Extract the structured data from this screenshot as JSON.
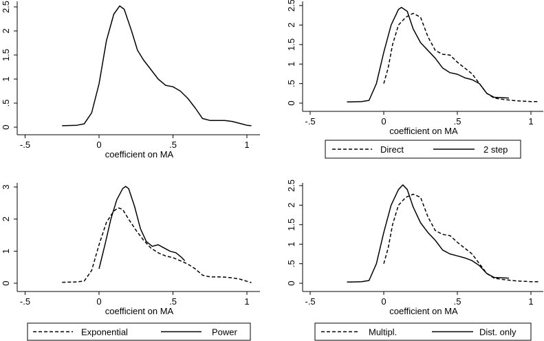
{
  "chart_data": [
    {
      "type": "line",
      "xlabel": "coefficient on MA",
      "xlim": [
        -0.5,
        1.0
      ],
      "ylim": [
        0,
        2.5
      ],
      "xticks": [
        {
          "v": -0.5,
          "label": "-.5"
        },
        {
          "v": 0,
          "label": "0"
        },
        {
          "v": 0.5,
          "label": ".5"
        },
        {
          "v": 1,
          "label": "1"
        }
      ],
      "yticks": [
        {
          "v": 0,
          "label": "0"
        },
        {
          "v": 0.5,
          "label": ".5"
        },
        {
          "v": 1,
          "label": "1"
        },
        {
          "v": 1.5,
          "label": "1.5"
        },
        {
          "v": 2,
          "label": "2"
        },
        {
          "v": 2.5,
          "label": "2.5"
        }
      ],
      "legend": [],
      "series": [
        {
          "style": "solid",
          "points": [
            [
              -0.25,
              0.03
            ],
            [
              -0.15,
              0.04
            ],
            [
              -0.1,
              0.07
            ],
            [
              -0.05,
              0.3
            ],
            [
              0.0,
              0.9
            ],
            [
              0.05,
              1.8
            ],
            [
              0.1,
              2.35
            ],
            [
              0.14,
              2.52
            ],
            [
              0.17,
              2.45
            ],
            [
              0.22,
              2.0
            ],
            [
              0.26,
              1.6
            ],
            [
              0.3,
              1.4
            ],
            [
              0.35,
              1.2
            ],
            [
              0.4,
              1.0
            ],
            [
              0.45,
              0.87
            ],
            [
              0.5,
              0.84
            ],
            [
              0.55,
              0.75
            ],
            [
              0.6,
              0.6
            ],
            [
              0.65,
              0.4
            ],
            [
              0.7,
              0.18
            ],
            [
              0.75,
              0.14
            ],
            [
              0.8,
              0.14
            ],
            [
              0.85,
              0.14
            ],
            [
              0.9,
              0.12
            ],
            [
              0.95,
              0.08
            ],
            [
              1.0,
              0.04
            ],
            [
              1.03,
              0.03
            ]
          ]
        }
      ]
    },
    {
      "type": "line",
      "xlabel": "coefficient on MA",
      "xlim": [
        -0.5,
        1.0
      ],
      "ylim": [
        0,
        2.5
      ],
      "xticks": [
        {
          "v": -0.5,
          "label": "-.5"
        },
        {
          "v": 0,
          "label": "0"
        },
        {
          "v": 0.5,
          "label": ".5"
        },
        {
          "v": 1,
          "label": "1"
        }
      ],
      "yticks": [
        {
          "v": 0,
          "label": "0"
        },
        {
          "v": 0.5,
          "label": ".5"
        },
        {
          "v": 1,
          "label": "1"
        },
        {
          "v": 1.5,
          "label": "1.5"
        },
        {
          "v": 2,
          "label": "2"
        },
        {
          "v": 2.5,
          "label": "2.5"
        }
      ],
      "legend": [
        "Direct",
        "2 step"
      ],
      "series": [
        {
          "name": "Direct",
          "style": "dashed",
          "points": [
            [
              0.0,
              0.5
            ],
            [
              0.03,
              0.9
            ],
            [
              0.06,
              1.5
            ],
            [
              0.1,
              2.0
            ],
            [
              0.15,
              2.2
            ],
            [
              0.2,
              2.3
            ],
            [
              0.25,
              2.2
            ],
            [
              0.3,
              1.7
            ],
            [
              0.35,
              1.35
            ],
            [
              0.4,
              1.25
            ],
            [
              0.45,
              1.23
            ],
            [
              0.5,
              1.05
            ],
            [
              0.55,
              0.9
            ],
            [
              0.6,
              0.75
            ],
            [
              0.65,
              0.5
            ],
            [
              0.7,
              0.25
            ],
            [
              0.75,
              0.13
            ],
            [
              0.8,
              0.1
            ],
            [
              0.9,
              0.06
            ],
            [
              1.0,
              0.04
            ],
            [
              1.05,
              0.04
            ]
          ]
        },
        {
          "name": "2 step",
          "style": "solid",
          "points": [
            [
              -0.25,
              0.03
            ],
            [
              -0.15,
              0.04
            ],
            [
              -0.1,
              0.07
            ],
            [
              -0.05,
              0.5
            ],
            [
              0.0,
              1.3
            ],
            [
              0.05,
              2.0
            ],
            [
              0.1,
              2.4
            ],
            [
              0.12,
              2.45
            ],
            [
              0.16,
              2.35
            ],
            [
              0.2,
              1.9
            ],
            [
              0.25,
              1.55
            ],
            [
              0.3,
              1.35
            ],
            [
              0.35,
              1.15
            ],
            [
              0.4,
              0.9
            ],
            [
              0.45,
              0.78
            ],
            [
              0.5,
              0.74
            ],
            [
              0.55,
              0.65
            ],
            [
              0.6,
              0.6
            ],
            [
              0.65,
              0.5
            ],
            [
              0.7,
              0.25
            ],
            [
              0.75,
              0.15
            ],
            [
              0.8,
              0.14
            ],
            [
              0.85,
              0.13
            ]
          ]
        }
      ]
    },
    {
      "type": "line",
      "xlabel": "coefficient on MA",
      "xlim": [
        -0.5,
        1.0
      ],
      "ylim": [
        0,
        3
      ],
      "xticks": [
        {
          "v": -0.5,
          "label": "-.5"
        },
        {
          "v": 0,
          "label": "0"
        },
        {
          "v": 0.5,
          "label": ".5"
        },
        {
          "v": 1,
          "label": "1"
        }
      ],
      "yticks": [
        {
          "v": 0,
          "label": "0"
        },
        {
          "v": 1,
          "label": "1"
        },
        {
          "v": 2,
          "label": "2"
        },
        {
          "v": 3,
          "label": "3"
        }
      ],
      "legend": [
        "Exponential",
        "Power"
      ],
      "series": [
        {
          "name": "Exponential",
          "style": "dashed",
          "points": [
            [
              -0.25,
              0.03
            ],
            [
              -0.15,
              0.04
            ],
            [
              -0.1,
              0.07
            ],
            [
              -0.05,
              0.4
            ],
            [
              0.0,
              1.2
            ],
            [
              0.05,
              1.9
            ],
            [
              0.1,
              2.25
            ],
            [
              0.13,
              2.35
            ],
            [
              0.16,
              2.3
            ],
            [
              0.2,
              2.0
            ],
            [
              0.25,
              1.65
            ],
            [
              0.3,
              1.35
            ],
            [
              0.35,
              1.1
            ],
            [
              0.4,
              0.95
            ],
            [
              0.45,
              0.85
            ],
            [
              0.5,
              0.8
            ],
            [
              0.55,
              0.7
            ],
            [
              0.6,
              0.6
            ],
            [
              0.65,
              0.45
            ],
            [
              0.7,
              0.25
            ],
            [
              0.75,
              0.2
            ],
            [
              0.8,
              0.2
            ],
            [
              0.85,
              0.19
            ],
            [
              0.9,
              0.17
            ],
            [
              0.95,
              0.13
            ],
            [
              1.0,
              0.06
            ],
            [
              1.03,
              0.02
            ]
          ]
        },
        {
          "name": "Power",
          "style": "solid",
          "points": [
            [
              0.0,
              0.45
            ],
            [
              0.04,
              1.2
            ],
            [
              0.08,
              2.0
            ],
            [
              0.12,
              2.6
            ],
            [
              0.16,
              2.95
            ],
            [
              0.18,
              3.02
            ],
            [
              0.2,
              2.95
            ],
            [
              0.24,
              2.4
            ],
            [
              0.28,
              1.7
            ],
            [
              0.32,
              1.3
            ],
            [
              0.36,
              1.15
            ],
            [
              0.4,
              1.2
            ],
            [
              0.44,
              1.1
            ],
            [
              0.48,
              1.0
            ],
            [
              0.52,
              0.95
            ],
            [
              0.56,
              0.8
            ],
            [
              0.58,
              0.7
            ]
          ]
        }
      ]
    },
    {
      "type": "line",
      "xlabel": "coefficient on MA",
      "xlim": [
        -0.5,
        1.0
      ],
      "ylim": [
        0,
        2.5
      ],
      "xticks": [
        {
          "v": -0.5,
          "label": "-.5"
        },
        {
          "v": 0,
          "label": "0"
        },
        {
          "v": 0.5,
          "label": ".5"
        },
        {
          "v": 1,
          "label": "1"
        }
      ],
      "yticks": [
        {
          "v": 0,
          "label": "0"
        },
        {
          "v": 0.5,
          "label": ".5"
        },
        {
          "v": 1,
          "label": "1"
        },
        {
          "v": 1.5,
          "label": "1.5"
        },
        {
          "v": 2,
          "label": "2"
        },
        {
          "v": 2.5,
          "label": "2.5"
        }
      ],
      "legend": [
        "Multipl.",
        "Dist. only"
      ],
      "series": [
        {
          "name": "Multipl.",
          "style": "dashed",
          "points": [
            [
              0.0,
              0.5
            ],
            [
              0.03,
              0.9
            ],
            [
              0.06,
              1.5
            ],
            [
              0.1,
              2.0
            ],
            [
              0.15,
              2.2
            ],
            [
              0.2,
              2.28
            ],
            [
              0.25,
              2.2
            ],
            [
              0.3,
              1.7
            ],
            [
              0.35,
              1.35
            ],
            [
              0.4,
              1.25
            ],
            [
              0.45,
              1.22
            ],
            [
              0.5,
              1.05
            ],
            [
              0.55,
              0.9
            ],
            [
              0.6,
              0.75
            ],
            [
              0.65,
              0.5
            ],
            [
              0.7,
              0.25
            ],
            [
              0.75,
              0.13
            ],
            [
              0.8,
              0.1
            ],
            [
              0.9,
              0.06
            ],
            [
              1.0,
              0.04
            ],
            [
              1.05,
              0.04
            ]
          ]
        },
        {
          "name": "Dist. only",
          "style": "solid",
          "points": [
            [
              -0.25,
              0.03
            ],
            [
              -0.15,
              0.04
            ],
            [
              -0.1,
              0.07
            ],
            [
              -0.05,
              0.5
            ],
            [
              0.0,
              1.3
            ],
            [
              0.05,
              2.0
            ],
            [
              0.1,
              2.4
            ],
            [
              0.13,
              2.52
            ],
            [
              0.16,
              2.4
            ],
            [
              0.2,
              1.95
            ],
            [
              0.25,
              1.55
            ],
            [
              0.3,
              1.3
            ],
            [
              0.35,
              1.1
            ],
            [
              0.4,
              0.85
            ],
            [
              0.45,
              0.75
            ],
            [
              0.5,
              0.7
            ],
            [
              0.55,
              0.65
            ],
            [
              0.6,
              0.58
            ],
            [
              0.65,
              0.45
            ],
            [
              0.7,
              0.25
            ],
            [
              0.75,
              0.15
            ],
            [
              0.8,
              0.14
            ],
            [
              0.85,
              0.13
            ]
          ]
        }
      ]
    }
  ]
}
